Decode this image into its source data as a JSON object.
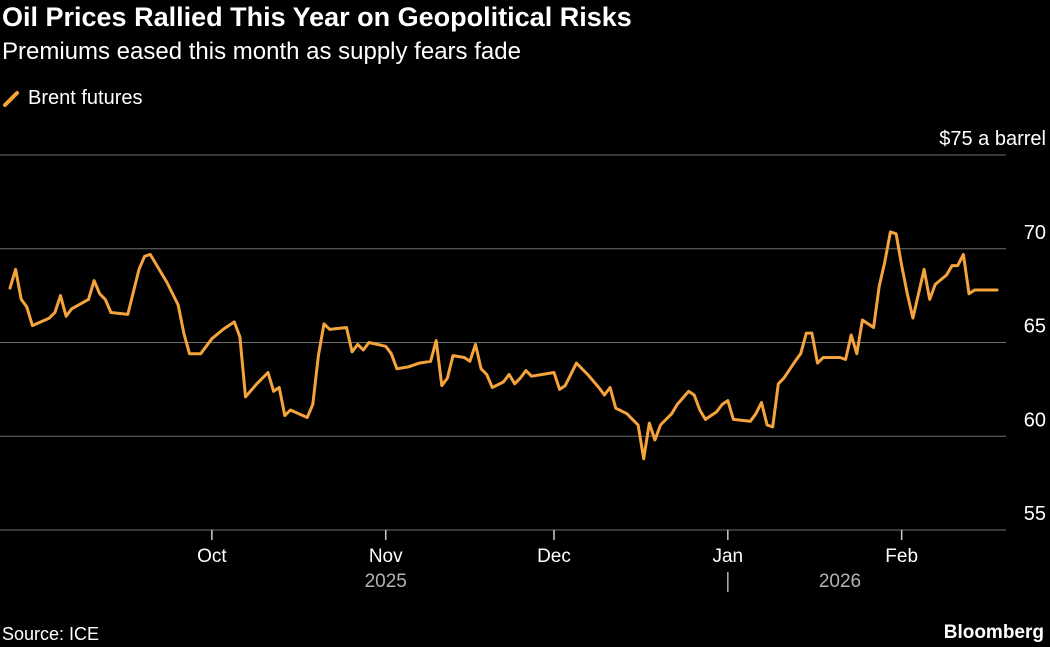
{
  "header": {
    "title": "Oil Prices Rallied This Year on Geopolitical Risks",
    "subtitle": "Premiums eased this month as supply fears fade"
  },
  "legend": {
    "label": "Brent futures",
    "color": "#f5a33c"
  },
  "footer": {
    "source": "Source: ICE",
    "brand": "Bloomberg"
  },
  "chart_data": {
    "type": "line",
    "title": "Oil Prices Rallied This Year on Geopolitical Risks",
    "subtitle": "Premiums eased this month as supply fears fade",
    "unit_label": "$75 a barrel",
    "ylim": [
      55,
      75
    ],
    "yticks": [
      55,
      60,
      65,
      70,
      75
    ],
    "ytick_labels": [
      "55",
      "60",
      "65",
      "70",
      "$75 a barrel"
    ],
    "grid": true,
    "legend_position": "top-left",
    "x_month_ticks": [
      {
        "label": "Oct",
        "date": "2025-10-01"
      },
      {
        "label": "Nov",
        "date": "2025-11-01"
      },
      {
        "label": "Dec",
        "date": "2025-12-01"
      },
      {
        "label": "Jan",
        "date": "2026-01-01"
      },
      {
        "label": "Feb",
        "date": "2026-02-01"
      }
    ],
    "x_year_labels": [
      {
        "label": "2025",
        "date": "2025-11-01"
      },
      {
        "label": "2026",
        "date": "2026-01-21"
      }
    ],
    "year_separator_date": "2026-01-01",
    "series": [
      {
        "name": "Brent futures",
        "color": "#f5a33c",
        "points": [
          [
            "2025-08-26",
            67.9
          ],
          [
            "2025-08-27",
            68.9
          ],
          [
            "2025-08-28",
            67.3
          ],
          [
            "2025-08-29",
            66.9
          ],
          [
            "2025-08-30",
            65.9
          ],
          [
            "2025-09-02",
            66.3
          ],
          [
            "2025-09-03",
            66.6
          ],
          [
            "2025-09-04",
            67.5
          ],
          [
            "2025-09-05",
            66.4
          ],
          [
            "2025-09-06",
            66.8
          ],
          [
            "2025-09-09",
            67.3
          ],
          [
            "2025-09-10",
            68.3
          ],
          [
            "2025-09-11",
            67.6
          ],
          [
            "2025-09-12",
            67.3
          ],
          [
            "2025-09-13",
            66.6
          ],
          [
            "2025-09-16",
            66.5
          ],
          [
            "2025-09-18",
            68.9
          ],
          [
            "2025-09-19",
            69.6
          ],
          [
            "2025-09-20",
            69.7
          ],
          [
            "2025-09-23",
            68.2
          ],
          [
            "2025-09-25",
            67.0
          ],
          [
            "2025-09-26",
            65.5
          ],
          [
            "2025-09-27",
            64.4
          ],
          [
            "2025-09-29",
            64.4
          ],
          [
            "2025-10-01",
            65.2
          ],
          [
            "2025-10-03",
            65.7
          ],
          [
            "2025-10-05",
            66.1
          ],
          [
            "2025-10-06",
            65.3
          ],
          [
            "2025-10-07",
            62.1
          ],
          [
            "2025-10-09",
            62.8
          ],
          [
            "2025-10-11",
            63.4
          ],
          [
            "2025-10-12",
            62.4
          ],
          [
            "2025-10-13",
            62.6
          ],
          [
            "2025-10-14",
            61.1
          ],
          [
            "2025-10-15",
            61.4
          ],
          [
            "2025-10-18",
            61.0
          ],
          [
            "2025-10-19",
            61.7
          ],
          [
            "2025-10-20",
            64.3
          ],
          [
            "2025-10-21",
            66.0
          ],
          [
            "2025-10-22",
            65.7
          ],
          [
            "2025-10-25",
            65.8
          ],
          [
            "2025-10-26",
            64.5
          ],
          [
            "2025-10-27",
            64.9
          ],
          [
            "2025-10-28",
            64.6
          ],
          [
            "2025-10-29",
            65.0
          ],
          [
            "2025-11-01",
            64.8
          ],
          [
            "2025-11-02",
            64.4
          ],
          [
            "2025-11-03",
            63.6
          ],
          [
            "2025-11-05",
            63.7
          ],
          [
            "2025-11-07",
            63.9
          ],
          [
            "2025-11-09",
            64.0
          ],
          [
            "2025-11-10",
            65.1
          ],
          [
            "2025-11-11",
            62.7
          ],
          [
            "2025-11-12",
            63.1
          ],
          [
            "2025-11-13",
            64.3
          ],
          [
            "2025-11-15",
            64.2
          ],
          [
            "2025-11-16",
            64.0
          ],
          [
            "2025-11-17",
            64.9
          ],
          [
            "2025-11-18",
            63.6
          ],
          [
            "2025-11-19",
            63.3
          ],
          [
            "2025-11-20",
            62.6
          ],
          [
            "2025-11-22",
            62.9
          ],
          [
            "2025-11-23",
            63.3
          ],
          [
            "2025-11-24",
            62.8
          ],
          [
            "2025-11-25",
            63.1
          ],
          [
            "2025-11-26",
            63.5
          ],
          [
            "2025-11-27",
            63.2
          ],
          [
            "2025-11-29",
            63.3
          ],
          [
            "2025-12-01",
            63.4
          ],
          [
            "2025-12-02",
            62.5
          ],
          [
            "2025-12-03",
            62.7
          ],
          [
            "2025-12-04",
            63.3
          ],
          [
            "2025-12-05",
            63.9
          ],
          [
            "2025-12-07",
            63.3
          ],
          [
            "2025-12-09",
            62.6
          ],
          [
            "2025-12-10",
            62.2
          ],
          [
            "2025-12-11",
            62.6
          ],
          [
            "2025-12-12",
            61.5
          ],
          [
            "2025-12-14",
            61.2
          ],
          [
            "2025-12-15",
            60.9
          ],
          [
            "2025-12-16",
            60.6
          ],
          [
            "2025-12-17",
            58.8
          ],
          [
            "2025-12-18",
            60.7
          ],
          [
            "2025-12-19",
            59.8
          ],
          [
            "2025-12-20",
            60.6
          ],
          [
            "2025-12-22",
            61.2
          ],
          [
            "2025-12-23",
            61.7
          ],
          [
            "2025-12-25",
            62.4
          ],
          [
            "2025-12-26",
            62.2
          ],
          [
            "2025-12-27",
            61.4
          ],
          [
            "2025-12-28",
            60.9
          ],
          [
            "2025-12-30",
            61.3
          ],
          [
            "2025-12-31",
            61.7
          ],
          [
            "2026-01-01",
            61.9
          ],
          [
            "2026-01-02",
            60.9
          ],
          [
            "2026-01-05",
            60.8
          ],
          [
            "2026-01-06",
            61.2
          ],
          [
            "2026-01-07",
            61.8
          ],
          [
            "2026-01-08",
            60.6
          ],
          [
            "2026-01-09",
            60.5
          ],
          [
            "2026-01-10",
            62.8
          ],
          [
            "2026-01-11",
            63.1
          ],
          [
            "2026-01-13",
            64.0
          ],
          [
            "2026-01-14",
            64.4
          ],
          [
            "2026-01-15",
            65.5
          ],
          [
            "2026-01-16",
            65.5
          ],
          [
            "2026-01-17",
            63.9
          ],
          [
            "2026-01-18",
            64.2
          ],
          [
            "2026-01-21",
            64.2
          ],
          [
            "2026-01-22",
            64.1
          ],
          [
            "2026-01-23",
            65.4
          ],
          [
            "2026-01-24",
            64.4
          ],
          [
            "2026-01-25",
            66.2
          ],
          [
            "2026-01-27",
            65.8
          ],
          [
            "2026-01-28",
            68.0
          ],
          [
            "2026-01-29",
            69.3
          ],
          [
            "2026-01-30",
            70.9
          ],
          [
            "2026-01-31",
            70.8
          ],
          [
            "2026-02-01",
            69.1
          ],
          [
            "2026-02-02",
            67.6
          ],
          [
            "2026-02-03",
            66.3
          ],
          [
            "2026-02-05",
            68.9
          ],
          [
            "2026-02-06",
            67.3
          ],
          [
            "2026-02-07",
            68.1
          ],
          [
            "2026-02-09",
            68.6
          ],
          [
            "2026-02-10",
            69.1
          ],
          [
            "2026-02-11",
            69.1
          ],
          [
            "2026-02-12",
            69.7
          ],
          [
            "2026-02-13",
            67.6
          ],
          [
            "2026-02-14",
            67.8
          ],
          [
            "2026-02-17",
            67.8
          ],
          [
            "2026-02-18",
            67.8
          ]
        ]
      }
    ]
  }
}
